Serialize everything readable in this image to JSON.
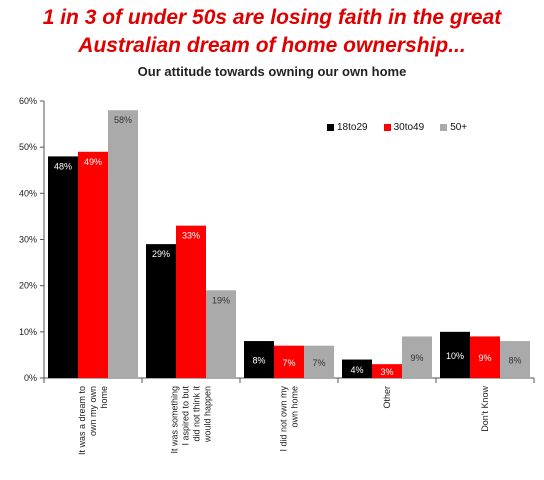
{
  "headline": {
    "line1": "1 in 3 of under 50s are losing faith in the great",
    "line2": "Australian dream of home ownership..."
  },
  "chart_data": {
    "type": "bar",
    "title": "Our attitude towards owning our own home",
    "categories": [
      "It was a dream to own my own home",
      "It was something I aspired to but did not think it would happen",
      "I did not own my own home",
      "Other",
      "Don't Know"
    ],
    "series": [
      {
        "name": "18to29",
        "color": "#000000",
        "values": [
          48,
          29,
          8,
          4,
          10
        ],
        "labels": [
          "48%",
          "29%",
          "8%",
          "4%",
          "10%"
        ]
      },
      {
        "name": "30to49",
        "color": "#ff0000",
        "values": [
          49,
          33,
          7,
          3,
          9
        ],
        "labels": [
          "49%",
          "33%",
          "7%",
          "3%",
          "9%"
        ]
      },
      {
        "name": "50+",
        "color": "#aaaaaa",
        "values": [
          58,
          19,
          7,
          9,
          8
        ],
        "labels": [
          "58%",
          "19%",
          "7%",
          "9%",
          "8%"
        ]
      }
    ],
    "yticks": [
      "0%",
      "10%",
      "20%",
      "30%",
      "40%",
      "50%",
      "60%"
    ],
    "ylim": [
      0,
      60
    ],
    "legend_position": "top-right",
    "grid": false
  }
}
